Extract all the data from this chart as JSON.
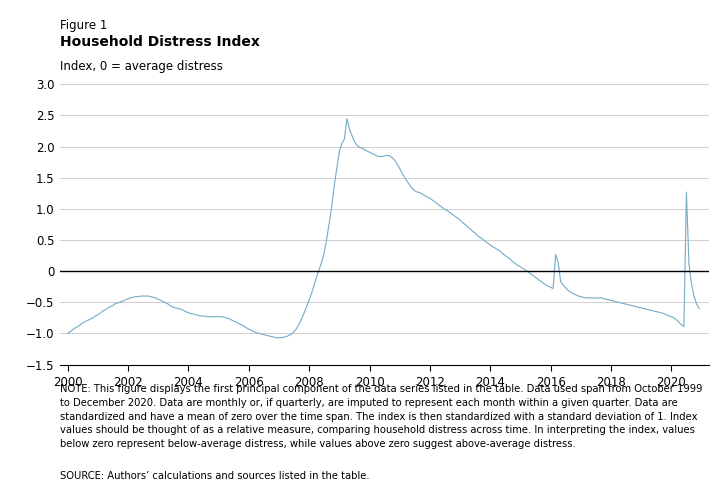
{
  "title_line1": "Figure 1",
  "title_line2": "Household Distress Index",
  "ylabel": "Index, 0 = average distress",
  "ylim": [
    -1.5,
    3.0
  ],
  "ytick_values": [
    -1.5,
    -1.0,
    -0.5,
    0,
    0.5,
    1.0,
    1.5,
    2.0,
    2.5,
    3.0
  ],
  "ytick_labels": [
    "−1.5",
    "−1.0",
    "−0.5",
    "0",
    "0.5",
    "1.0",
    "1.5",
    "2.0",
    "2.5",
    "3.0"
  ],
  "xlim_start": 1999.75,
  "xlim_end": 2021.25,
  "xtick_years": [
    2000,
    2002,
    2004,
    2006,
    2008,
    2010,
    2012,
    2014,
    2016,
    2018,
    2020
  ],
  "line_color": "#7baec9",
  "zero_line_color": "#000000",
  "grid_color": "#c8c8c8",
  "background_color": "#ffffff",
  "note_text": "NOTE: This figure displays the first principal component of the data series listed in the table. Data used span from October 1999 to December 2020. Data are monthly or, if quarterly, are imputed to represent each month within a given quarter. Data are standardized and have a mean of zero over the time span. The index is then standardized with a standard deviation of 1. Index values should be thought of as a relative measure, comparing household distress across time. In interpreting the index, values below zero represent below-average distress, while values above zero suggest above-average distress.",
  "source_text": "SOURCE: Authors’ calculations and sources listed in the table.",
  "data_x": [
    2000.0,
    2000.083,
    2000.167,
    2000.25,
    2000.333,
    2000.417,
    2000.5,
    2000.583,
    2000.667,
    2000.75,
    2000.833,
    2000.917,
    2001.0,
    2001.083,
    2001.167,
    2001.25,
    2001.333,
    2001.417,
    2001.5,
    2001.583,
    2001.667,
    2001.75,
    2001.833,
    2001.917,
    2002.0,
    2002.083,
    2002.167,
    2002.25,
    2002.333,
    2002.417,
    2002.5,
    2002.583,
    2002.667,
    2002.75,
    2002.833,
    2002.917,
    2003.0,
    2003.083,
    2003.167,
    2003.25,
    2003.333,
    2003.417,
    2003.5,
    2003.583,
    2003.667,
    2003.75,
    2003.833,
    2003.917,
    2004.0,
    2004.083,
    2004.167,
    2004.25,
    2004.333,
    2004.417,
    2004.5,
    2004.583,
    2004.667,
    2004.75,
    2004.833,
    2004.917,
    2005.0,
    2005.083,
    2005.167,
    2005.25,
    2005.333,
    2005.417,
    2005.5,
    2005.583,
    2005.667,
    2005.75,
    2005.833,
    2005.917,
    2006.0,
    2006.083,
    2006.167,
    2006.25,
    2006.333,
    2006.417,
    2006.5,
    2006.583,
    2006.667,
    2006.75,
    2006.833,
    2006.917,
    2007.0,
    2007.083,
    2007.167,
    2007.25,
    2007.333,
    2007.417,
    2007.5,
    2007.583,
    2007.667,
    2007.75,
    2007.833,
    2007.917,
    2008.0,
    2008.083,
    2008.167,
    2008.25,
    2008.333,
    2008.417,
    2008.5,
    2008.583,
    2008.667,
    2008.75,
    2008.833,
    2008.917,
    2009.0,
    2009.083,
    2009.167,
    2009.25,
    2009.333,
    2009.417,
    2009.5,
    2009.583,
    2009.667,
    2009.75,
    2009.833,
    2009.917,
    2010.0,
    2010.083,
    2010.167,
    2010.25,
    2010.333,
    2010.417,
    2010.5,
    2010.583,
    2010.667,
    2010.75,
    2010.833,
    2010.917,
    2011.0,
    2011.083,
    2011.167,
    2011.25,
    2011.333,
    2011.417,
    2011.5,
    2011.583,
    2011.667,
    2011.75,
    2011.833,
    2011.917,
    2012.0,
    2012.083,
    2012.167,
    2012.25,
    2012.333,
    2012.417,
    2012.5,
    2012.583,
    2012.667,
    2012.75,
    2012.833,
    2012.917,
    2013.0,
    2013.083,
    2013.167,
    2013.25,
    2013.333,
    2013.417,
    2013.5,
    2013.583,
    2013.667,
    2013.75,
    2013.833,
    2013.917,
    2014.0,
    2014.083,
    2014.167,
    2014.25,
    2014.333,
    2014.417,
    2014.5,
    2014.583,
    2014.667,
    2014.75,
    2014.833,
    2014.917,
    2015.0,
    2015.083,
    2015.167,
    2015.25,
    2015.333,
    2015.417,
    2015.5,
    2015.583,
    2015.667,
    2015.75,
    2015.833,
    2015.917,
    2016.0,
    2016.083,
    2016.167,
    2016.25,
    2016.333,
    2016.417,
    2016.5,
    2016.583,
    2016.667,
    2016.75,
    2016.833,
    2016.917,
    2017.0,
    2017.083,
    2017.167,
    2017.25,
    2017.333,
    2017.417,
    2017.5,
    2017.583,
    2017.667,
    2017.75,
    2017.833,
    2017.917,
    2018.0,
    2018.083,
    2018.167,
    2018.25,
    2018.333,
    2018.417,
    2018.5,
    2018.583,
    2018.667,
    2018.75,
    2018.833,
    2018.917,
    2019.0,
    2019.083,
    2019.167,
    2019.25,
    2019.333,
    2019.417,
    2019.5,
    2019.583,
    2019.667,
    2019.75,
    2019.833,
    2019.917,
    2020.0,
    2020.083,
    2020.167,
    2020.25,
    2020.333,
    2020.417,
    2020.5,
    2020.583,
    2020.667,
    2020.75,
    2020.833,
    2020.917
  ],
  "data_y": [
    -1.0,
    -0.97,
    -0.94,
    -0.91,
    -0.89,
    -0.86,
    -0.83,
    -0.81,
    -0.79,
    -0.77,
    -0.75,
    -0.72,
    -0.7,
    -0.67,
    -0.64,
    -0.62,
    -0.59,
    -0.57,
    -0.55,
    -0.52,
    -0.51,
    -0.49,
    -0.48,
    -0.46,
    -0.44,
    -0.43,
    -0.42,
    -0.41,
    -0.41,
    -0.4,
    -0.4,
    -0.4,
    -0.4,
    -0.41,
    -0.42,
    -0.43,
    -0.45,
    -0.47,
    -0.49,
    -0.51,
    -0.53,
    -0.56,
    -0.58,
    -0.59,
    -0.6,
    -0.61,
    -0.63,
    -0.65,
    -0.67,
    -0.68,
    -0.69,
    -0.7,
    -0.71,
    -0.72,
    -0.72,
    -0.73,
    -0.73,
    -0.73,
    -0.73,
    -0.73,
    -0.73,
    -0.73,
    -0.74,
    -0.75,
    -0.76,
    -0.78,
    -0.8,
    -0.82,
    -0.84,
    -0.86,
    -0.88,
    -0.91,
    -0.93,
    -0.95,
    -0.97,
    -0.99,
    -1.0,
    -1.01,
    -1.02,
    -1.03,
    -1.04,
    -1.05,
    -1.06,
    -1.07,
    -1.07,
    -1.07,
    -1.06,
    -1.05,
    -1.03,
    -1.01,
    -0.97,
    -0.92,
    -0.85,
    -0.77,
    -0.67,
    -0.57,
    -0.46,
    -0.35,
    -0.22,
    -0.09,
    0.03,
    0.15,
    0.3,
    0.52,
    0.78,
    1.05,
    1.38,
    1.65,
    1.92,
    2.05,
    2.12,
    2.45,
    2.28,
    2.18,
    2.08,
    2.02,
    1.99,
    1.97,
    1.95,
    1.93,
    1.91,
    1.89,
    1.87,
    1.85,
    1.84,
    1.84,
    1.85,
    1.86,
    1.85,
    1.82,
    1.78,
    1.72,
    1.65,
    1.57,
    1.5,
    1.44,
    1.38,
    1.33,
    1.29,
    1.27,
    1.26,
    1.24,
    1.21,
    1.19,
    1.17,
    1.14,
    1.11,
    1.08,
    1.05,
    1.02,
    0.99,
    0.97,
    0.94,
    0.91,
    0.88,
    0.85,
    0.82,
    0.78,
    0.75,
    0.71,
    0.68,
    0.64,
    0.61,
    0.57,
    0.54,
    0.51,
    0.48,
    0.45,
    0.42,
    0.39,
    0.37,
    0.34,
    0.32,
    0.28,
    0.25,
    0.22,
    0.19,
    0.15,
    0.12,
    0.09,
    0.07,
    0.04,
    0.02,
    -0.01,
    -0.04,
    -0.07,
    -0.1,
    -0.13,
    -0.16,
    -0.19,
    -0.22,
    -0.24,
    -0.26,
    -0.28,
    0.27,
    0.14,
    -0.17,
    -0.22,
    -0.27,
    -0.31,
    -0.34,
    -0.36,
    -0.38,
    -0.4,
    -0.41,
    -0.42,
    -0.43,
    -0.43,
    -0.43,
    -0.43,
    -0.43,
    -0.43,
    -0.43,
    -0.44,
    -0.45,
    -0.46,
    -0.47,
    -0.48,
    -0.49,
    -0.5,
    -0.51,
    -0.52,
    -0.53,
    -0.54,
    -0.55,
    -0.56,
    -0.57,
    -0.58,
    -0.59,
    -0.6,
    -0.61,
    -0.62,
    -0.63,
    -0.64,
    -0.65,
    -0.66,
    -0.67,
    -0.68,
    -0.7,
    -0.72,
    -0.73,
    -0.75,
    -0.78,
    -0.82,
    -0.86,
    -0.89,
    1.27,
    0.12,
    -0.2,
    -0.4,
    -0.52,
    -0.6
  ]
}
